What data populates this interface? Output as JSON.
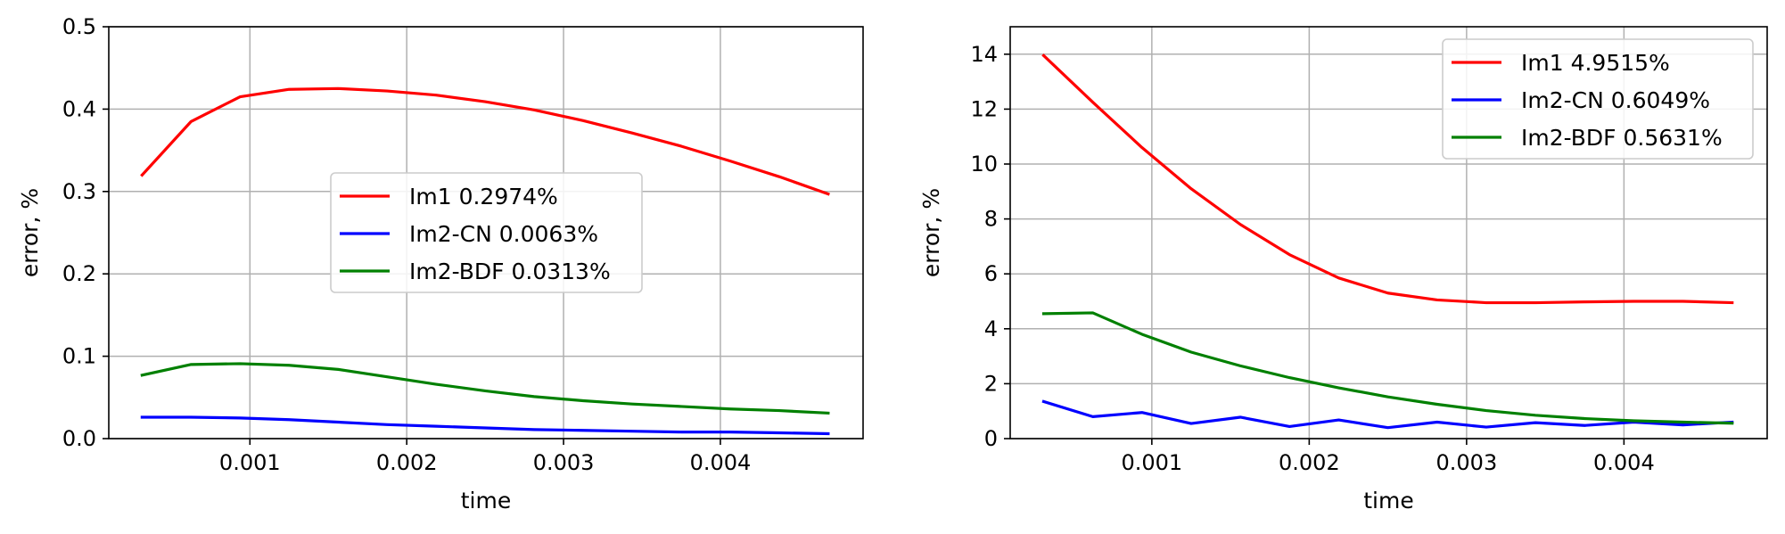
{
  "chart_data": [
    {
      "type": "line",
      "xlabel": "time",
      "ylabel": "error, %",
      "xlim": [
        0.0001,
        0.00491
      ],
      "ylim": [
        0,
        0.5
      ],
      "xticks": [
        0.001,
        0.002,
        0.003,
        0.004
      ],
      "xtick_labels": [
        "0.001",
        "0.002",
        "0.003",
        "0.004"
      ],
      "yticks": [
        0.0,
        0.1,
        0.2,
        0.3,
        0.4,
        0.5
      ],
      "ytick_labels": [
        "0.0",
        "0.1",
        "0.2",
        "0.3",
        "0.4",
        "0.5"
      ],
      "grid": true,
      "legend_position": "center",
      "x": [
        0.0003125,
        0.000625,
        0.0009375,
        0.00125,
        0.0015625,
        0.001875,
        0.0021875,
        0.0025,
        0.0028125,
        0.003125,
        0.0034375,
        0.00375,
        0.0040625,
        0.004375,
        0.0046875
      ],
      "series": [
        {
          "name": "Im1 0.2974%",
          "color": "#ff0000",
          "values": [
            0.32,
            0.385,
            0.415,
            0.424,
            0.425,
            0.422,
            0.417,
            0.409,
            0.399,
            0.386,
            0.371,
            0.355,
            0.337,
            0.318,
            0.297
          ]
        },
        {
          "name": "Im2-CN 0.0063%",
          "color": "#0000ff",
          "values": [
            0.026,
            0.026,
            0.025,
            0.023,
            0.02,
            0.017,
            0.015,
            0.013,
            0.011,
            0.01,
            0.009,
            0.008,
            0.008,
            0.007,
            0.006
          ]
        },
        {
          "name": "Im2-BDF 0.0313%",
          "color": "#008000",
          "values": [
            0.077,
            0.09,
            0.091,
            0.089,
            0.084,
            0.075,
            0.066,
            0.058,
            0.051,
            0.046,
            0.042,
            0.039,
            0.036,
            0.034,
            0.031
          ]
        }
      ]
    },
    {
      "type": "line",
      "xlabel": "time",
      "ylabel": "error, %",
      "xlim": [
        0.0001,
        0.00491
      ],
      "ylim": [
        0,
        15
      ],
      "xticks": [
        0.001,
        0.002,
        0.003,
        0.004
      ],
      "xtick_labels": [
        "0.001",
        "0.002",
        "0.003",
        "0.004"
      ],
      "yticks": [
        0,
        2,
        4,
        6,
        8,
        10,
        12,
        14
      ],
      "ytick_labels": [
        "0",
        "2",
        "4",
        "6",
        "8",
        "10",
        "12",
        "14"
      ],
      "grid": true,
      "legend_position": "upper right",
      "x": [
        0.0003125,
        0.000625,
        0.0009375,
        0.00125,
        0.0015625,
        0.001875,
        0.0021875,
        0.0025,
        0.0028125,
        0.003125,
        0.0034375,
        0.00375,
        0.0040625,
        0.004375,
        0.0046875
      ],
      "series": [
        {
          "name": "Im1 4.9515%",
          "color": "#ff0000",
          "values": [
            13.95,
            12.25,
            10.6,
            9.1,
            7.8,
            6.7,
            5.85,
            5.3,
            5.05,
            4.95,
            4.95,
            4.98,
            5.0,
            5.0,
            4.95
          ]
        },
        {
          "name": "Im2-CN 0.6049%",
          "color": "#0000ff",
          "values": [
            1.35,
            0.8,
            0.95,
            0.55,
            0.78,
            0.44,
            0.68,
            0.4,
            0.6,
            0.42,
            0.58,
            0.48,
            0.6,
            0.5,
            0.6
          ]
        },
        {
          "name": "Im2-BDF 0.5631%",
          "color": "#008000",
          "values": [
            4.55,
            4.58,
            3.8,
            3.15,
            2.65,
            2.22,
            1.85,
            1.52,
            1.25,
            1.02,
            0.85,
            0.73,
            0.65,
            0.6,
            0.56
          ]
        }
      ]
    }
  ]
}
